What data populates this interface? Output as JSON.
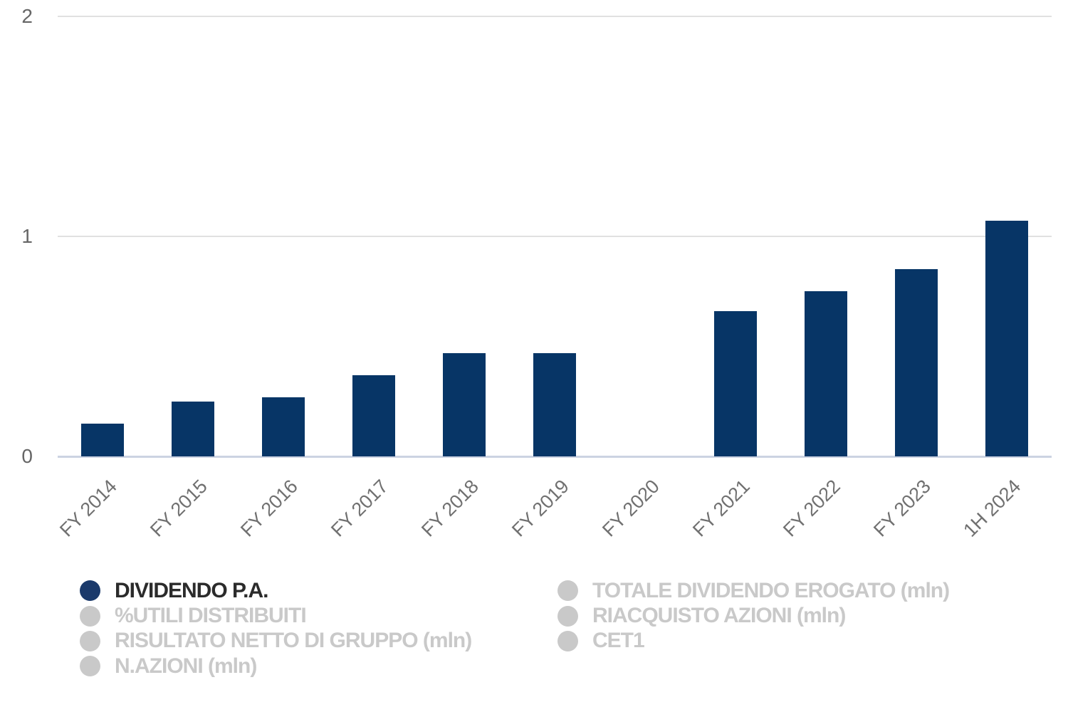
{
  "chart_data": {
    "type": "bar",
    "title": "",
    "categories": [
      "FY 2014",
      "FY 2015",
      "FY 2016",
      "FY 2017",
      "FY 2018",
      "FY 2019",
      "FY 2020",
      "FY 2021",
      "FY 2022",
      "FY 2023",
      "1H 2024"
    ],
    "series": [
      {
        "name": "DIVIDENDO P.A.",
        "values": [
          0.15,
          0.25,
          0.27,
          0.37,
          0.47,
          0.47,
          0,
          0.66,
          0.75,
          0.85,
          1.07
        ]
      }
    ],
    "xlabel": "",
    "ylabel": "",
    "ylim": [
      0,
      2
    ],
    "yticks": [
      2,
      1,
      0
    ],
    "grid": true,
    "legend_position": "bottom"
  },
  "legend": {
    "columns": [
      {
        "items": [
          {
            "label": "DIVIDENDO P.A.",
            "active": true
          },
          {
            "label": "%UTILI DISTRIBUITI",
            "active": false
          },
          {
            "label": "RISULTATO NETTO DI GRUPPO (mln)",
            "active": false
          },
          {
            "label": "N.AZIONI (mln)",
            "active": false
          }
        ]
      },
      {
        "items": [
          {
            "label": "TOTALE DIVIDENDO EROGATO (mln)",
            "active": false
          },
          {
            "label": "RIACQUISTO AZIONI (mln)",
            "active": false
          },
          {
            "label": "CET1",
            "active": false
          }
        ]
      }
    ]
  },
  "colors": {
    "bar_fill": "#073566",
    "legend_active_dot": "#1b3a6b",
    "legend_active_text": "#2b2b2b",
    "legend_inactive": "#c9c9c9",
    "axis_tick_text": "#666666",
    "x_tick_text": "#707070",
    "gridline": "#e1e1e1",
    "baseline": "#ccd3e2",
    "background": "#ffffff"
  }
}
